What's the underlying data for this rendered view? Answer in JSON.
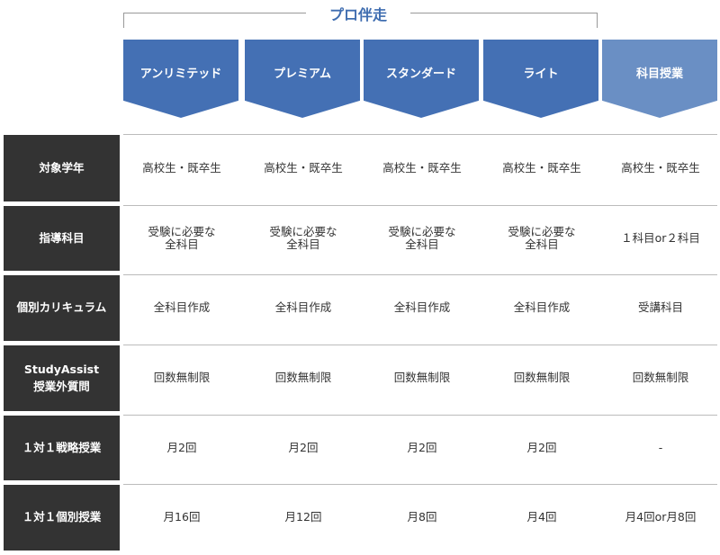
{
  "group_label": "プロ伴走",
  "colors": {
    "plan_blue": "#4470b4",
    "subject_blue": "#6a8fc4",
    "row_label_bg": "#333333"
  },
  "plans": [
    "アンリミテッド",
    "プレミアム",
    "スタンダード",
    "ライト",
    "科目授業"
  ],
  "rows": [
    {
      "label": "対象学年",
      "values": [
        "高校生・既卒生",
        "高校生・既卒生",
        "高校生・既卒生",
        "高校生・既卒生",
        "高校生・既卒生"
      ]
    },
    {
      "label": "指導科目",
      "values": [
        "受験に必要な\n全科目",
        "受験に必要な\n全科目",
        "受験に必要な\n全科目",
        "受験に必要な\n全科目",
        "１科目or２科目"
      ]
    },
    {
      "label": "個別カリキュラム",
      "values": [
        "全科目作成",
        "全科目作成",
        "全科目作成",
        "全科目作成",
        "受講科目"
      ]
    },
    {
      "label": "StudyAssist\n授業外質問",
      "values": [
        "回数無制限",
        "回数無制限",
        "回数無制限",
        "回数無制限",
        "回数無制限"
      ]
    },
    {
      "label": "１対１戦略授業",
      "values": [
        "月2回",
        "月2回",
        "月2回",
        "月2回",
        "-"
      ]
    },
    {
      "label": "１対１個別授業",
      "values": [
        "月16回",
        "月12回",
        "月8回",
        "月4回",
        "月4回or月8回"
      ]
    }
  ]
}
